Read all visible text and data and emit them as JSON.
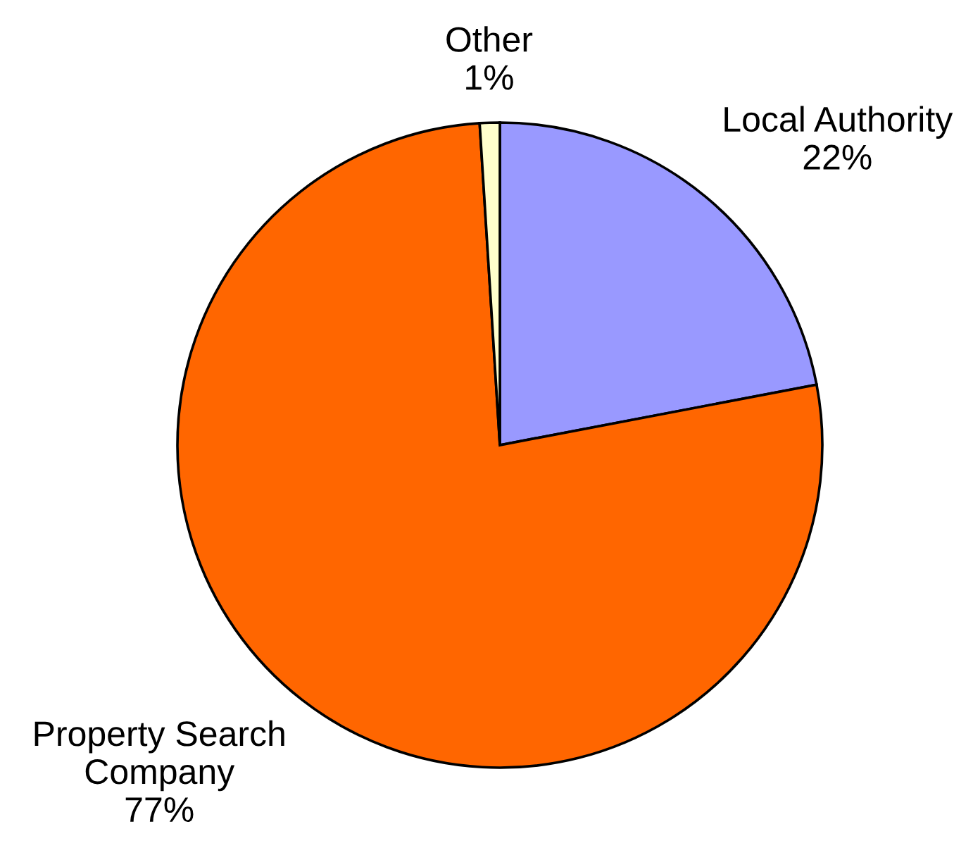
{
  "chart_data": {
    "type": "pie",
    "categories": [
      "Local Authority",
      "Property Search\nCompany",
      "Other"
    ],
    "values": [
      22,
      77,
      1
    ],
    "colors": [
      "#9999ff",
      "#ff6600",
      "#ffffcc"
    ],
    "value_labels": [
      "22%",
      "77%",
      "1%"
    ],
    "legend": false
  }
}
